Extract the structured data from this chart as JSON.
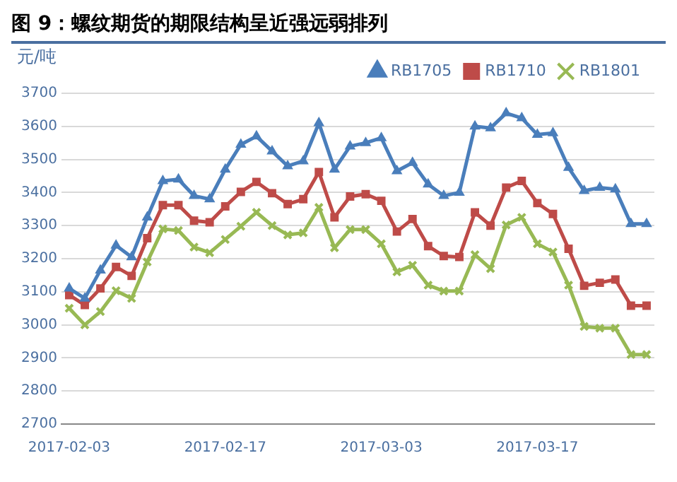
{
  "chart_data": {
    "type": "line",
    "title": "图 9：螺纹期货的期限结构呈近强远弱排列",
    "ylabel": "元/吨",
    "categories": [
      "2017-02-03",
      null,
      null,
      null,
      null,
      null,
      null,
      null,
      null,
      null,
      "2017-02-17",
      null,
      null,
      null,
      null,
      null,
      null,
      null,
      null,
      null,
      "2017-03-03",
      null,
      null,
      null,
      null,
      null,
      null,
      null,
      null,
      null,
      "2017-03-17",
      null,
      null,
      null,
      null,
      null,
      null,
      null
    ],
    "series": [
      {
        "name": "RB1705",
        "color": "#4a7ebb",
        "marker": "triangle",
        "values": [
          3110,
          3080,
          3165,
          3240,
          3205,
          3325,
          3435,
          3440,
          3390,
          3380,
          3470,
          3545,
          3570,
          3525,
          3480,
          3495,
          3610,
          3470,
          3540,
          3550,
          3565,
          3465,
          3490,
          3425,
          3390,
          3400,
          3600,
          3595,
          3640,
          3625,
          3575,
          3580,
          3475,
          3405,
          3415,
          3410,
          3305,
          3305
        ]
      },
      {
        "name": "RB1710",
        "color": "#be4b48",
        "marker": "square",
        "values": [
          3090,
          3060,
          3110,
          3175,
          3148,
          3262,
          3362,
          3362,
          3315,
          3310,
          3358,
          3402,
          3432,
          3398,
          3365,
          3380,
          3462,
          3325,
          3388,
          3395,
          3375,
          3282,
          3320,
          3238,
          3208,
          3205,
          3340,
          3300,
          3415,
          3435,
          3368,
          3335,
          3230,
          3118,
          3127,
          3137,
          3058,
          3058
        ]
      },
      {
        "name": "RB1801",
        "color": "#98b954",
        "marker": "cross",
        "values": [
          3050,
          3000,
          3040,
          3103,
          3080,
          3190,
          3290,
          3285,
          3235,
          3218,
          3258,
          3298,
          3340,
          3300,
          3272,
          3278,
          3355,
          3233,
          3288,
          3288,
          3245,
          3160,
          3180,
          3120,
          3102,
          3102,
          3212,
          3170,
          3302,
          3325,
          3245,
          3220,
          3120,
          2995,
          2990,
          2990,
          2910,
          2910
        ]
      }
    ],
    "ylim": [
      2700,
      3700
    ],
    "yticks": [
      2700,
      2800,
      2900,
      3000,
      3100,
      3200,
      3300,
      3400,
      3500,
      3600,
      3700
    ],
    "grid": "y",
    "legend": "top right",
    "line_style": "solid"
  }
}
